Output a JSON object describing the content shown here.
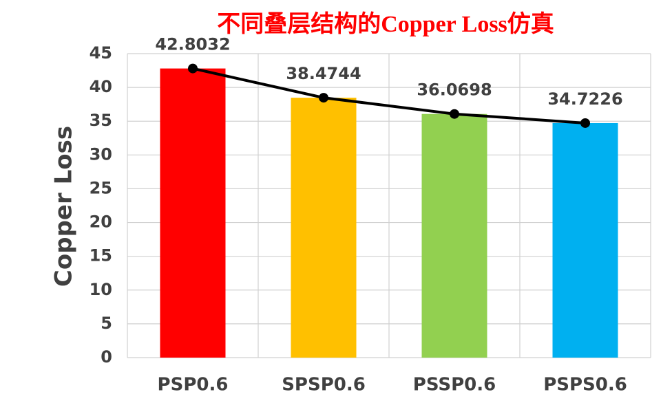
{
  "chart_data": {
    "type": "bar",
    "title": "不同叠层结构的Copper Loss仿真",
    "y_label": "Copper Loss",
    "categories": [
      "PSP0.6",
      "SPSP0.6",
      "PSSP0.6",
      "PSPS0.6"
    ],
    "values": [
      42.8032,
      38.4744,
      36.0698,
      34.7226
    ],
    "colors": [
      "#ff0000",
      "#ffc000",
      "#92d050",
      "#00b0f0"
    ],
    "line_color": "#000000",
    "ylim": [
      0,
      45
    ],
    "yticks": [
      0,
      5,
      10,
      15,
      20,
      25,
      30,
      35,
      40,
      45
    ],
    "grid": true
  }
}
